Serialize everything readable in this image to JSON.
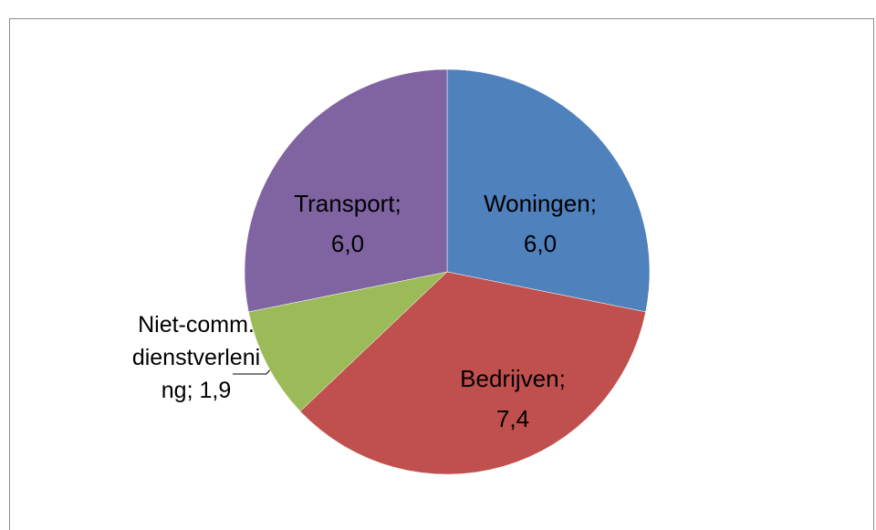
{
  "chart_data": {
    "type": "pie",
    "categories": [
      "Woningen",
      "Bedrijven",
      "Niet-comm. dienstverlening",
      "Transport"
    ],
    "values": [
      6.0,
      7.4,
      1.9,
      6.0
    ],
    "value_labels": [
      "6,0",
      "7,4",
      "1,9",
      "6,0"
    ],
    "label_separator": ";",
    "colors": [
      "#4f81bd",
      "#c0504d",
      "#9bbb59",
      "#8064a2"
    ]
  }
}
